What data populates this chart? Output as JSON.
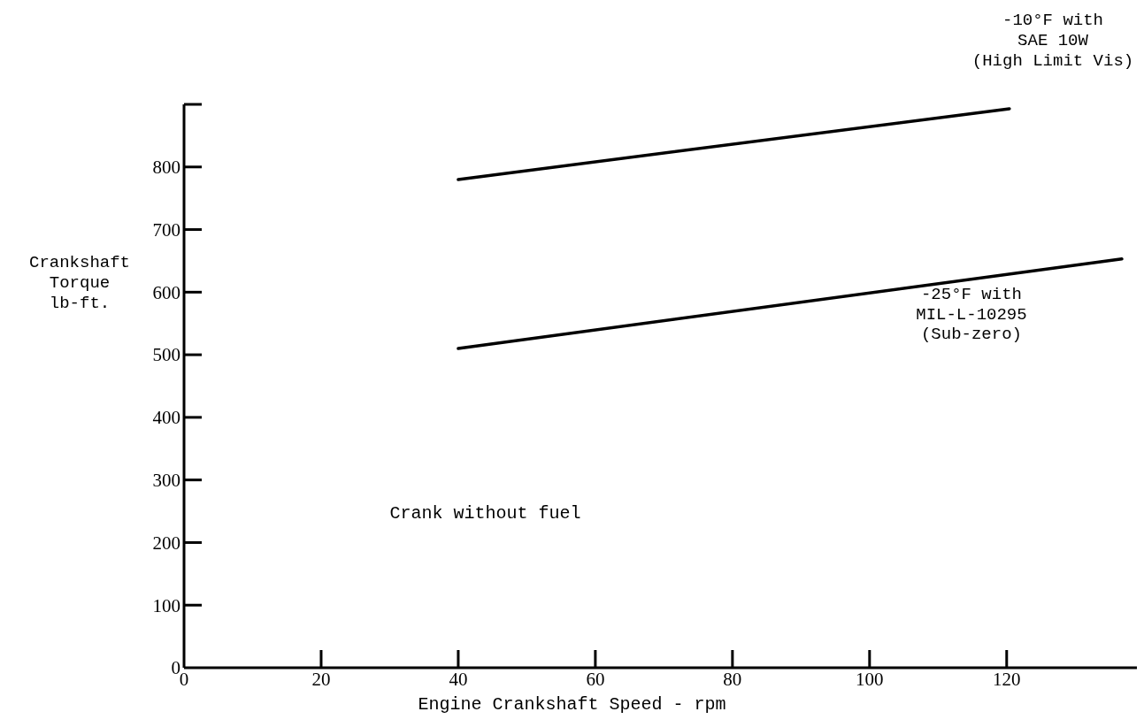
{
  "chart_data": {
    "type": "line",
    "xlabel": "Engine Crankshaft Speed - rpm",
    "ylabel": "Crankshaft\nTorque\nlb-ft.",
    "xlim": [
      0,
      139
    ],
    "xticks": [
      0,
      20,
      40,
      60,
      80,
      100,
      120
    ],
    "ylim": [
      0,
      900
    ],
    "yticks": [
      0,
      100,
      200,
      300,
      400,
      500,
      600,
      700,
      800
    ],
    "grid": false,
    "marker": "none",
    "line_style": "solid",
    "series": [
      {
        "name": "-10°F with\nSAE 10W\n(High Limit Vis)",
        "color": "#000000",
        "x": [
          40,
          120.4
        ],
        "values": [
          780,
          893
        ]
      },
      {
        "name": "-25°F with\nMIL-L-10295\n(Sub-zero)",
        "color": "#000000",
        "x": [
          40,
          136.8
        ],
        "values": [
          510,
          653
        ]
      }
    ],
    "annotations": [
      "Crank without fuel"
    ]
  }
}
